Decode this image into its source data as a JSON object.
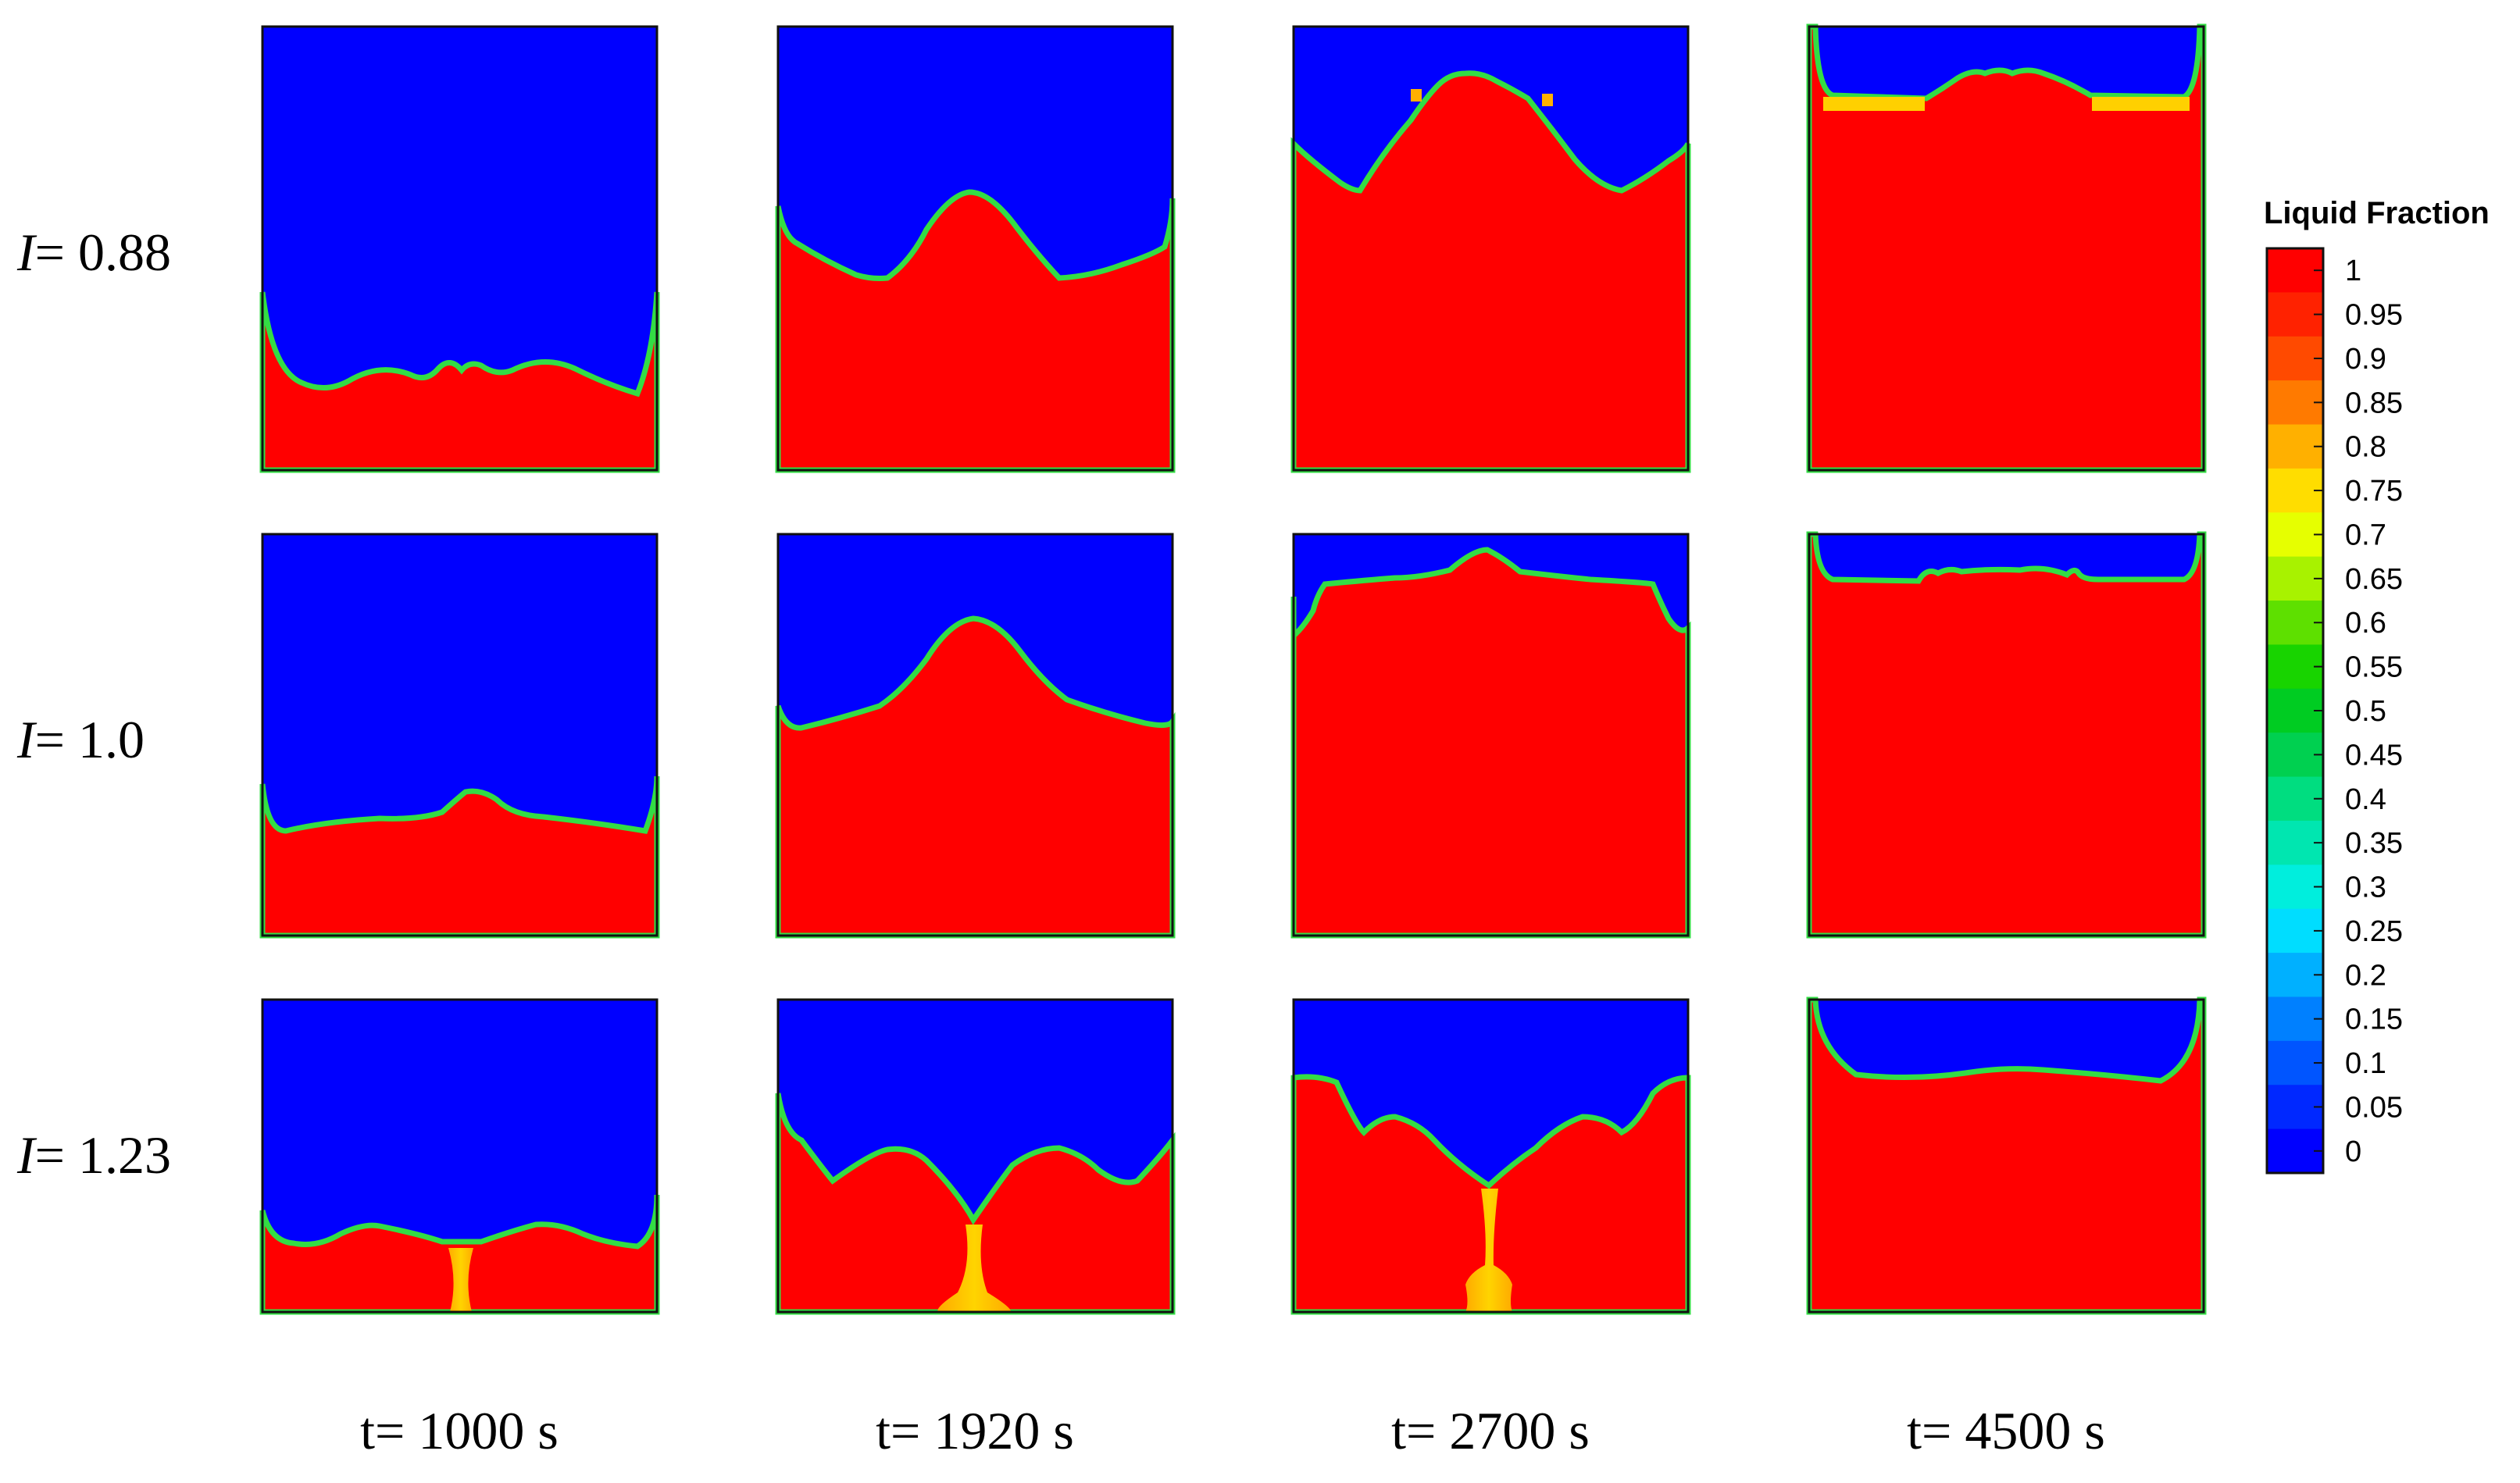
{
  "row_labels": [
    {
      "variable": "I",
      "value": "= 0.88"
    },
    {
      "variable": "I",
      "value": "= 1.0"
    },
    {
      "variable": "I",
      "value": "= 1.23"
    }
  ],
  "column_labels": [
    "t= 1000 s",
    "t= 1920 s",
    "t= 2700 s",
    "t= 4500 s"
  ],
  "colorbar": {
    "title": "Liquid Fraction",
    "ticks": [
      "1",
      "0.95",
      "0.9",
      "0.85",
      "0.8",
      "0.75",
      "0.7",
      "0.65",
      "0.6",
      "0.55",
      "0.5",
      "0.45",
      "0.4",
      "0.35",
      "0.3",
      "0.25",
      "0.2",
      "0.15",
      "0.1",
      "0.05",
      "0"
    ],
    "colors": [
      "#ff0000",
      "#ff2200",
      "#ff4a00",
      "#ff7a00",
      "#ffb000",
      "#ffdd00",
      "#e6ff00",
      "#a8f200",
      "#5ee000",
      "#18d400",
      "#00cc22",
      "#00d050",
      "#00dd80",
      "#00e6b0",
      "#00eedd",
      "#00ddff",
      "#00b0ff",
      "#0080ff",
      "#0055ff",
      "#0028ff",
      "#0000ff"
    ]
  },
  "colors": {
    "solid": "#0000ff",
    "liquid": "#ff0000",
    "interface": "#33dd44",
    "mushy": "#ffb000",
    "frame": "#111111"
  }
}
